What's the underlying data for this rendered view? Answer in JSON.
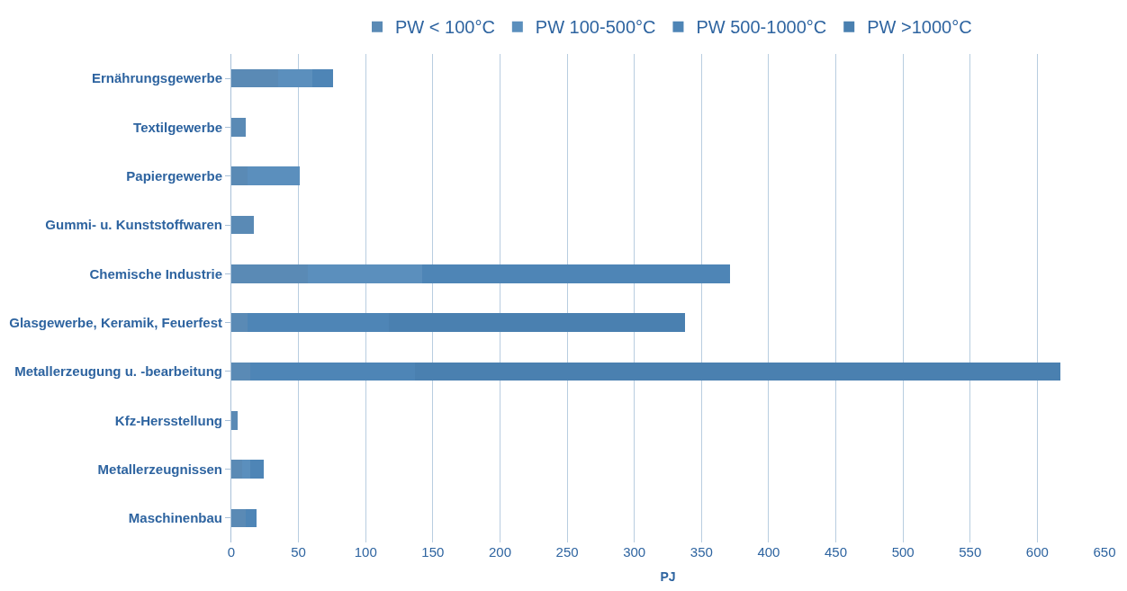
{
  "chart_data": {
    "type": "bar",
    "orientation": "horizontal",
    "stacked": true,
    "xlabel": "PJ",
    "categories": [
      "Ernährungsgewerbe",
      "Textilgewerbe",
      "Papiergewerbe",
      "Gummi- u. Kunststoffwaren",
      "Chemische Industrie",
      "Glasgewerbe, Keramik, Feuerfest",
      "Metallerzeugung u. -bearbeitung",
      "Kfz-Hersstellung",
      "Metallerzeugnissen",
      "Maschinenbau"
    ],
    "series": [
      {
        "name": "PW < 100°C",
        "color": "#5a8ab5",
        "values": [
          35,
          11,
          12,
          17,
          57,
          12,
          14,
          5,
          8,
          11
        ]
      },
      {
        "name": "PW 100-500°C",
        "color": "#5b8fbd",
        "values": [
          25,
          0,
          39,
          0,
          85,
          0,
          0,
          0,
          6,
          0
        ]
      },
      {
        "name": "PW 500-1000°C",
        "color": "#4e85b6",
        "values": [
          16,
          0,
          0,
          0,
          229,
          105,
          123,
          0,
          10,
          8
        ]
      },
      {
        "name": "PW >1000°C",
        "color": "#4a80b0",
        "values": [
          0,
          0,
          0,
          0,
          0,
          221,
          480,
          0,
          0,
          0
        ]
      }
    ],
    "xlim": [
      0,
      650
    ],
    "xticks": [
      0,
      50,
      100,
      150,
      200,
      250,
      300,
      350,
      400,
      450,
      500,
      550,
      600,
      650
    ],
    "grid": "x",
    "legend": "top"
  }
}
